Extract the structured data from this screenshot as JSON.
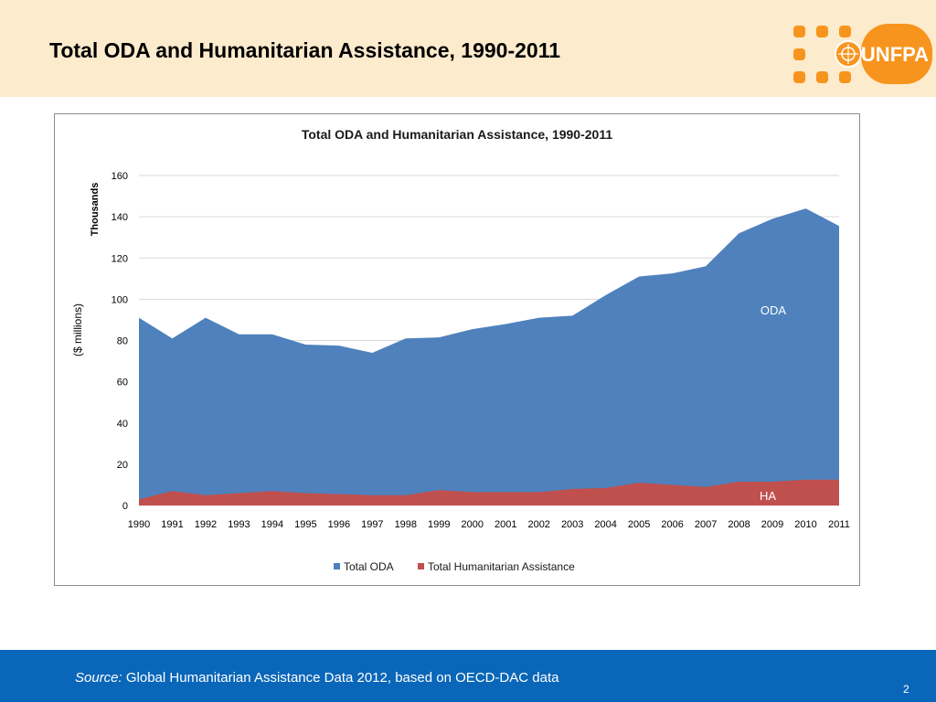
{
  "slide": {
    "title": "Total ODA and Humanitarian Assistance, 1990-2011",
    "logo_text": "UNFPA"
  },
  "footer": {
    "source_label": "Source:",
    "source_text": "Global Humanitarian Assistance Data 2012, based on OECD-DAC data",
    "page_number": "2"
  },
  "colors": {
    "header_bg": "#fcebcc",
    "footer_bg": "#0a66b8",
    "oda": "#4f81bd",
    "ha": "#c0504d",
    "logo_orange": "#f7941d"
  },
  "chart_data": {
    "type": "area",
    "title": "Total ODA and Humanitarian Assistance, 1990-2011",
    "ylabel": "($ millions)",
    "y_unit_label": "Thousands",
    "ylim": [
      0,
      160
    ],
    "yticks": [
      0,
      20,
      40,
      60,
      80,
      100,
      120,
      140,
      160
    ],
    "grid": true,
    "legend_position": "bottom",
    "categories": [
      "1990",
      "1991",
      "1992",
      "1993",
      "1994",
      "1995",
      "1996",
      "1997",
      "1998",
      "1999",
      "2000",
      "2001",
      "2002",
      "2003",
      "2004",
      "2005",
      "2006",
      "2007",
      "2008",
      "2009",
      "2010",
      "2011"
    ],
    "series": [
      {
        "name": "Total ODA",
        "label": "ODA",
        "color": "#4f81bd",
        "values": [
          91,
          81,
          91,
          83,
          83,
          78,
          77.5,
          74,
          81,
          81.5,
          85.5,
          88,
          91,
          92,
          102,
          111,
          112.5,
          116,
          132,
          139,
          144,
          135.5
        ]
      },
      {
        "name": "Total Humanitarian Assistance",
        "label": "HA",
        "color": "#c0504d",
        "values": [
          3,
          7,
          5,
          6,
          7,
          6,
          5.5,
          5,
          5,
          7.5,
          6.5,
          6.5,
          6.5,
          8,
          8.5,
          11,
          10,
          9,
          11.5,
          11.5,
          12.5,
          12.5
        ]
      }
    ]
  }
}
